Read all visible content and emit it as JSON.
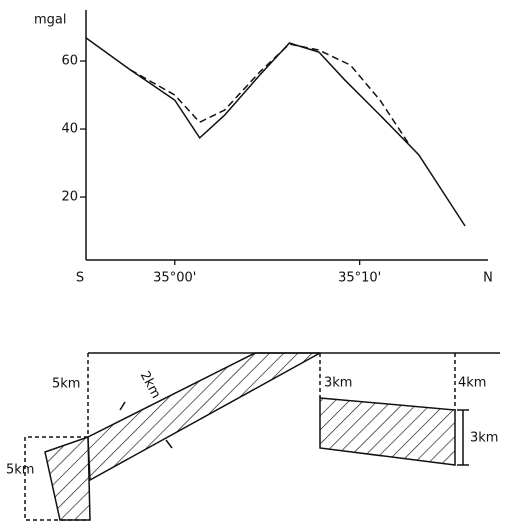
{
  "chart_data": {
    "type": "line",
    "y_label": "mgal",
    "x_end_labels": [
      "S",
      "N"
    ],
    "xlim": [
      -4.8,
      16.4
    ],
    "ylim": [
      1.5,
      75
    ],
    "xticks": [
      {
        "value": 0,
        "label": "35°00'"
      },
      {
        "value": 10,
        "label": "35°10'"
      }
    ],
    "yticks": [
      20,
      40,
      60
    ],
    "series": [
      {
        "color": "#111111",
        "line_style": "solid",
        "x": [
          -4.8,
          -2.4,
          0,
          1.35,
          2.7,
          4.6,
          6.2,
          7.8,
          9.2,
          11.1,
          13.2,
          15.7
        ],
        "values": [
          66.8,
          57.4,
          48.5,
          37.4,
          44.1,
          55.9,
          65.3,
          62.6,
          54.4,
          44.1,
          32.4,
          11.5
        ]
      },
      {
        "color": "#111111",
        "line_style": "dashed",
        "x": [
          -2.4,
          0,
          1.35,
          2.7,
          4.6,
          6.2,
          7.8,
          9.5,
          11.1,
          12.7
        ],
        "values": [
          57.4,
          50,
          42,
          45.6,
          56.8,
          65,
          63.2,
          58.8,
          48.5,
          35.3
        ]
      }
    ]
  },
  "diagram": {
    "labels": [
      "5km",
      "2km",
      "3km",
      "4km",
      "3km",
      "5km"
    ]
  }
}
